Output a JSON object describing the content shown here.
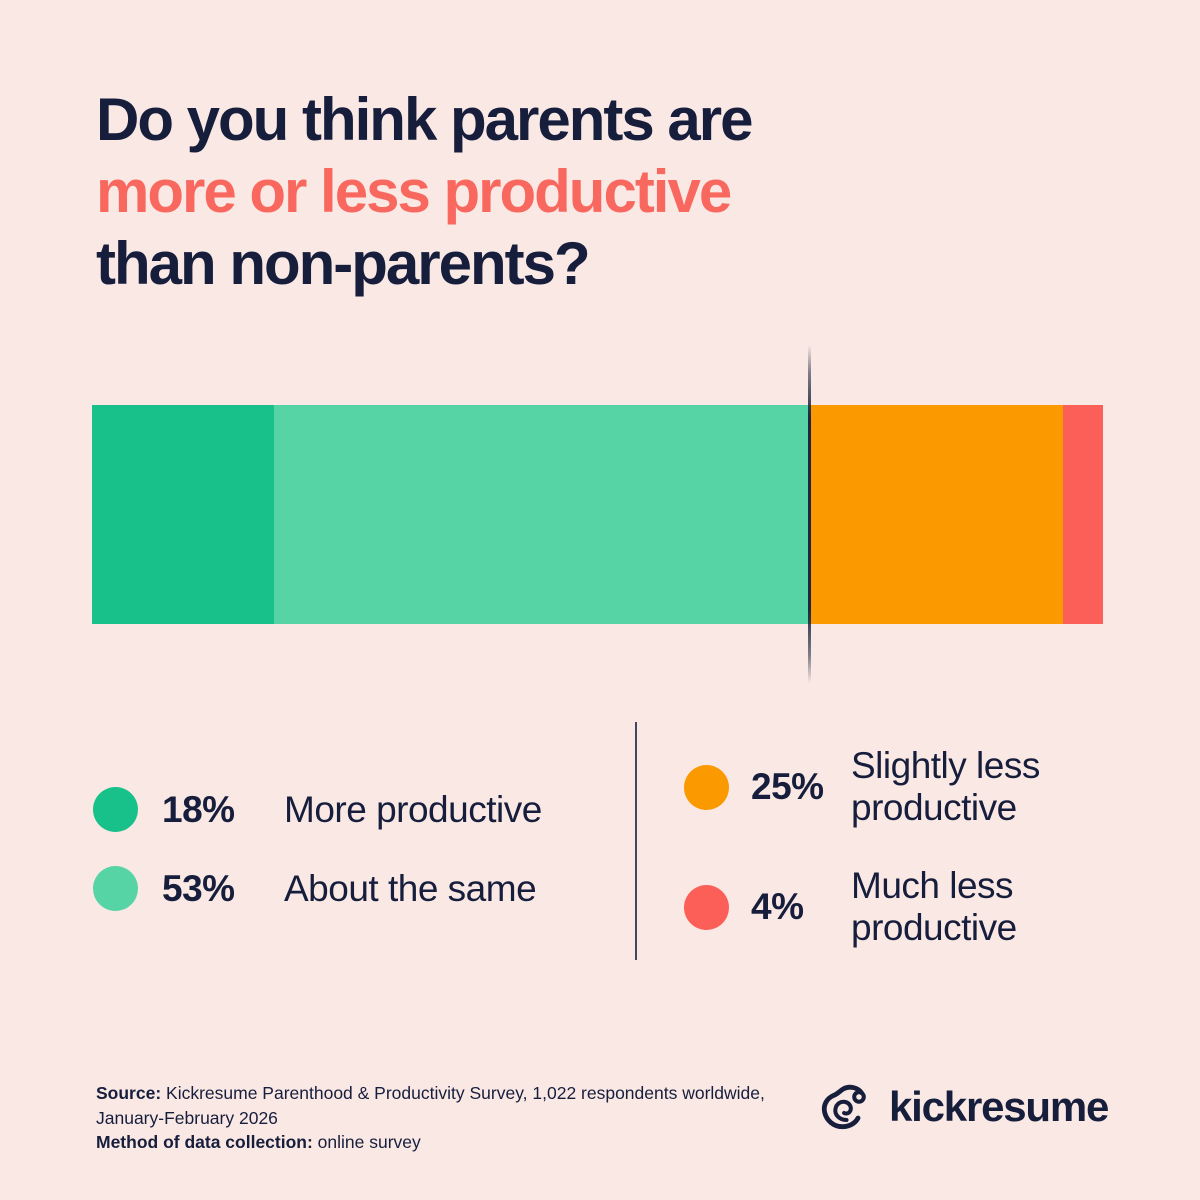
{
  "page": {
    "background_color": "#fae8e5",
    "text_color": "#161e3c",
    "accent_color": "#f9685f"
  },
  "title": {
    "line1": "Do you think parents are",
    "line2": "more or less productive",
    "line3": "than non-parents?"
  },
  "chart_data": {
    "type": "bar",
    "orientation": "horizontal-stacked",
    "title": "Do you think parents are more or less productive than non-parents?",
    "categories": [
      "More productive",
      "About the same",
      "Slightly less productive",
      "Much less productive"
    ],
    "values": [
      18,
      53,
      25,
      4
    ],
    "colors": [
      "#17c189",
      "#57d4a6",
      "#fb9900",
      "#fb5f58"
    ],
    "unit": "%",
    "divider_after_percent": 71,
    "legend_position": "below",
    "grid": false
  },
  "legend": {
    "left": [
      {
        "pct": "18%",
        "label": "More productive",
        "color": "#17c189"
      },
      {
        "pct": "53%",
        "label": "About the same",
        "color": "#57d4a6"
      }
    ],
    "right": [
      {
        "pct": "25%",
        "label": "Slightly less\nproductive",
        "color": "#fb9900"
      },
      {
        "pct": "4%",
        "label": "Much less\nproductive",
        "color": "#fb5f58"
      }
    ]
  },
  "footer": {
    "source_bold": "Source:",
    "source_rest": " Kickresume Parenthood & Productivity Survey, 1,022 respondents worldwide,",
    "source_line2": "January-February 2026",
    "method_bold": "Method of data collection:",
    "method_rest": " online survey",
    "logo_text": "kickresume"
  }
}
